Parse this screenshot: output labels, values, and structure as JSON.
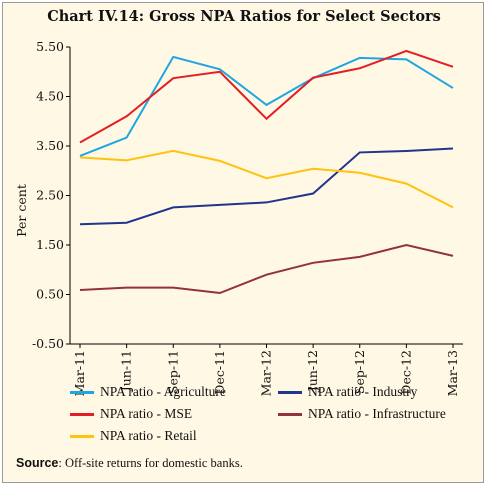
{
  "chart_data": {
    "type": "line",
    "title": "Chart IV.14: Gross NPA Ratios for Select Sectors",
    "ylabel": "Per cent",
    "xlabel": "",
    "ylim": [
      -0.5,
      5.5
    ],
    "yticks": [
      "5.50",
      "4.50",
      "3.50",
      "2.50",
      "1.50",
      "0.50",
      "-0.50"
    ],
    "ytick_values": [
      5.5,
      4.5,
      3.5,
      2.5,
      1.5,
      0.5,
      -0.5
    ],
    "categories": [
      "Mar-11",
      "Jun-11",
      "Sep-11",
      "Dec-11",
      "Mar-12",
      "Jun-12",
      "Sep-12",
      "Dec-12",
      "Mar-13"
    ],
    "grid": false,
    "legend_placement": "bottom",
    "series": [
      {
        "name": "NPA ratio - Agriculture",
        "color": "#1ea7e1",
        "values": [
          3.3,
          3.67,
          5.3,
          5.05,
          4.33,
          4.87,
          5.28,
          5.25,
          4.67
        ]
      },
      {
        "name": "NPA ratio - Industry",
        "color": "#20358f",
        "values": [
          1.92,
          1.95,
          2.26,
          2.31,
          2.36,
          2.54,
          3.37,
          3.4,
          3.45
        ]
      },
      {
        "name": "NPA ratio - MSE",
        "color": "#e31e24",
        "values": [
          3.57,
          4.1,
          4.87,
          5.0,
          4.05,
          4.88,
          5.07,
          5.42,
          5.1
        ]
      },
      {
        "name": "NPA ratio - Infrastructure",
        "color": "#93313f",
        "values": [
          0.59,
          0.64,
          0.64,
          0.53,
          0.9,
          1.14,
          1.26,
          1.5,
          1.28
        ]
      },
      {
        "name": "NPA ratio - Retail",
        "color": "#ffc20e",
        "values": [
          3.27,
          3.21,
          3.4,
          3.2,
          2.85,
          3.04,
          2.96,
          2.74,
          2.26
        ]
      }
    ]
  },
  "source": {
    "label": "Source",
    "text": ": Off-site returns for domestic banks."
  }
}
